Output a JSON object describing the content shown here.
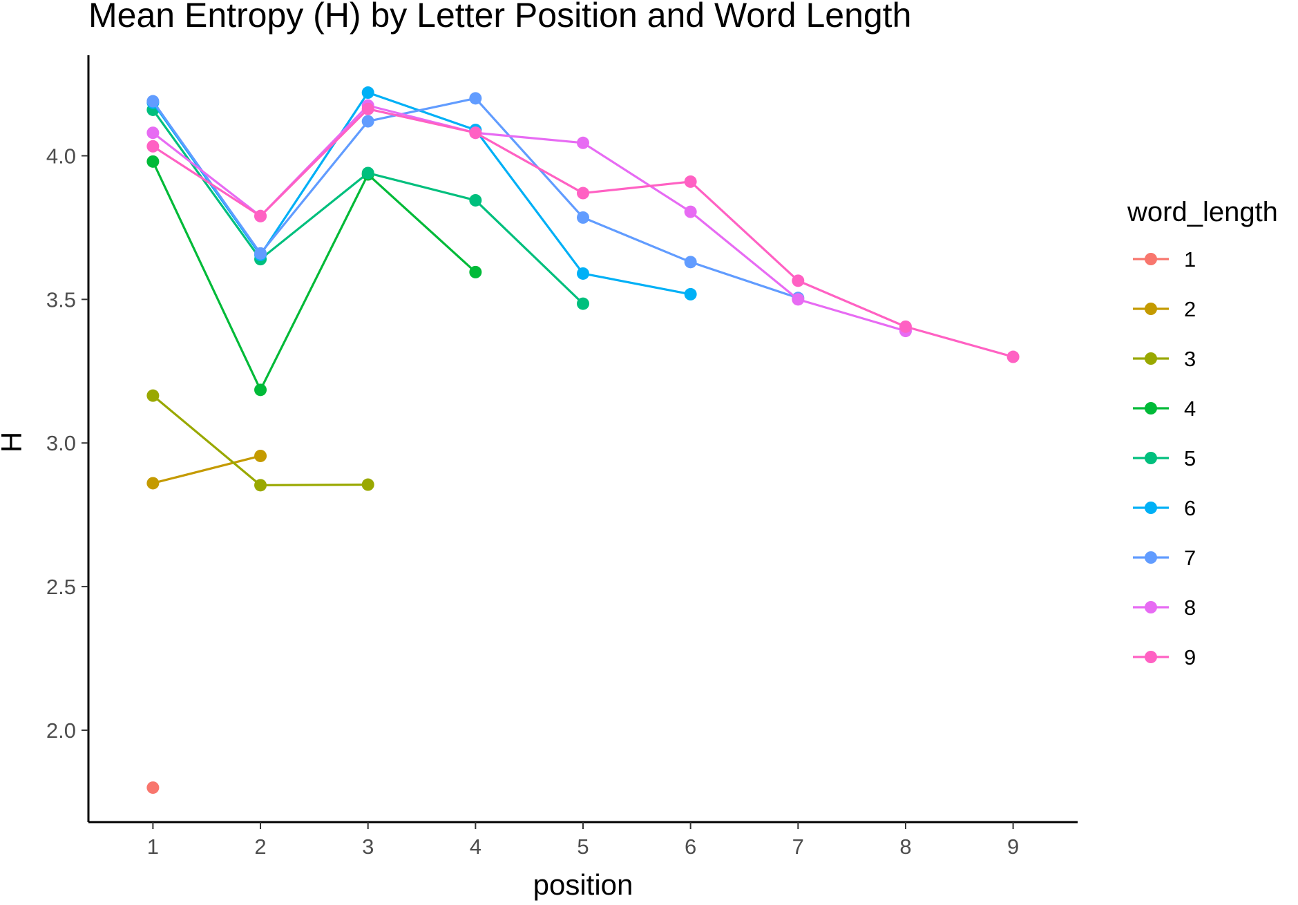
{
  "chart_data": {
    "type": "line",
    "title": "Mean Entropy (H) by Letter Position and Word Length",
    "xlabel": "position",
    "ylabel": "H",
    "x_ticks": [
      1,
      2,
      3,
      4,
      5,
      6,
      7,
      8,
      9
    ],
    "y_ticks": [
      2.0,
      2.5,
      3.0,
      3.5,
      4.0
    ],
    "y_tick_labels": [
      "2.0",
      "2.5",
      "3.0",
      "3.5",
      "4.0"
    ],
    "xlim": [
      0.4,
      9.6
    ],
    "ylim": [
      1.68,
      4.35
    ],
    "grid": false,
    "legend": {
      "title": "word_length",
      "position": "right"
    },
    "series": [
      {
        "name": "1",
        "color": "#F8766D",
        "x": [
          1
        ],
        "y": [
          1.8
        ]
      },
      {
        "name": "2",
        "color": "#C49A00",
        "x": [
          1,
          2
        ],
        "y": [
          2.86,
          2.955
        ]
      },
      {
        "name": "3",
        "color": "#99A800",
        "x": [
          1,
          2,
          3
        ],
        "y": [
          3.165,
          2.853,
          2.855
        ]
      },
      {
        "name": "4",
        "color": "#00BA38",
        "x": [
          1,
          2,
          3,
          4
        ],
        "y": [
          3.98,
          3.185,
          3.935,
          3.595
        ]
      },
      {
        "name": "5",
        "color": "#00BF7D",
        "x": [
          1,
          2,
          3,
          4,
          5
        ],
        "y": [
          4.16,
          3.64,
          3.94,
          3.845,
          3.485
        ]
      },
      {
        "name": "6",
        "color": "#00B0F6",
        "x": [
          1,
          2,
          3,
          4,
          5,
          6
        ],
        "y": [
          4.185,
          3.655,
          4.22,
          4.09,
          3.59,
          3.518
        ]
      },
      {
        "name": "7",
        "color": "#619CFF",
        "x": [
          1,
          2,
          3,
          4,
          5,
          6,
          7
        ],
        "y": [
          4.19,
          3.66,
          4.12,
          4.2,
          3.785,
          3.63,
          3.505
        ]
      },
      {
        "name": "8",
        "color": "#E76BF3",
        "x": [
          1,
          2,
          3,
          4,
          5,
          6,
          7,
          8
        ],
        "y": [
          4.08,
          3.79,
          4.175,
          4.08,
          4.045,
          3.805,
          3.5,
          3.39
        ]
      },
      {
        "name": "9",
        "color": "#FF61C3",
        "x": [
          1,
          2,
          3,
          4,
          5,
          6,
          7,
          8,
          9
        ],
        "y": [
          4.033,
          3.79,
          4.163,
          4.08,
          3.87,
          3.91,
          3.565,
          3.405,
          3.3
        ]
      }
    ]
  }
}
